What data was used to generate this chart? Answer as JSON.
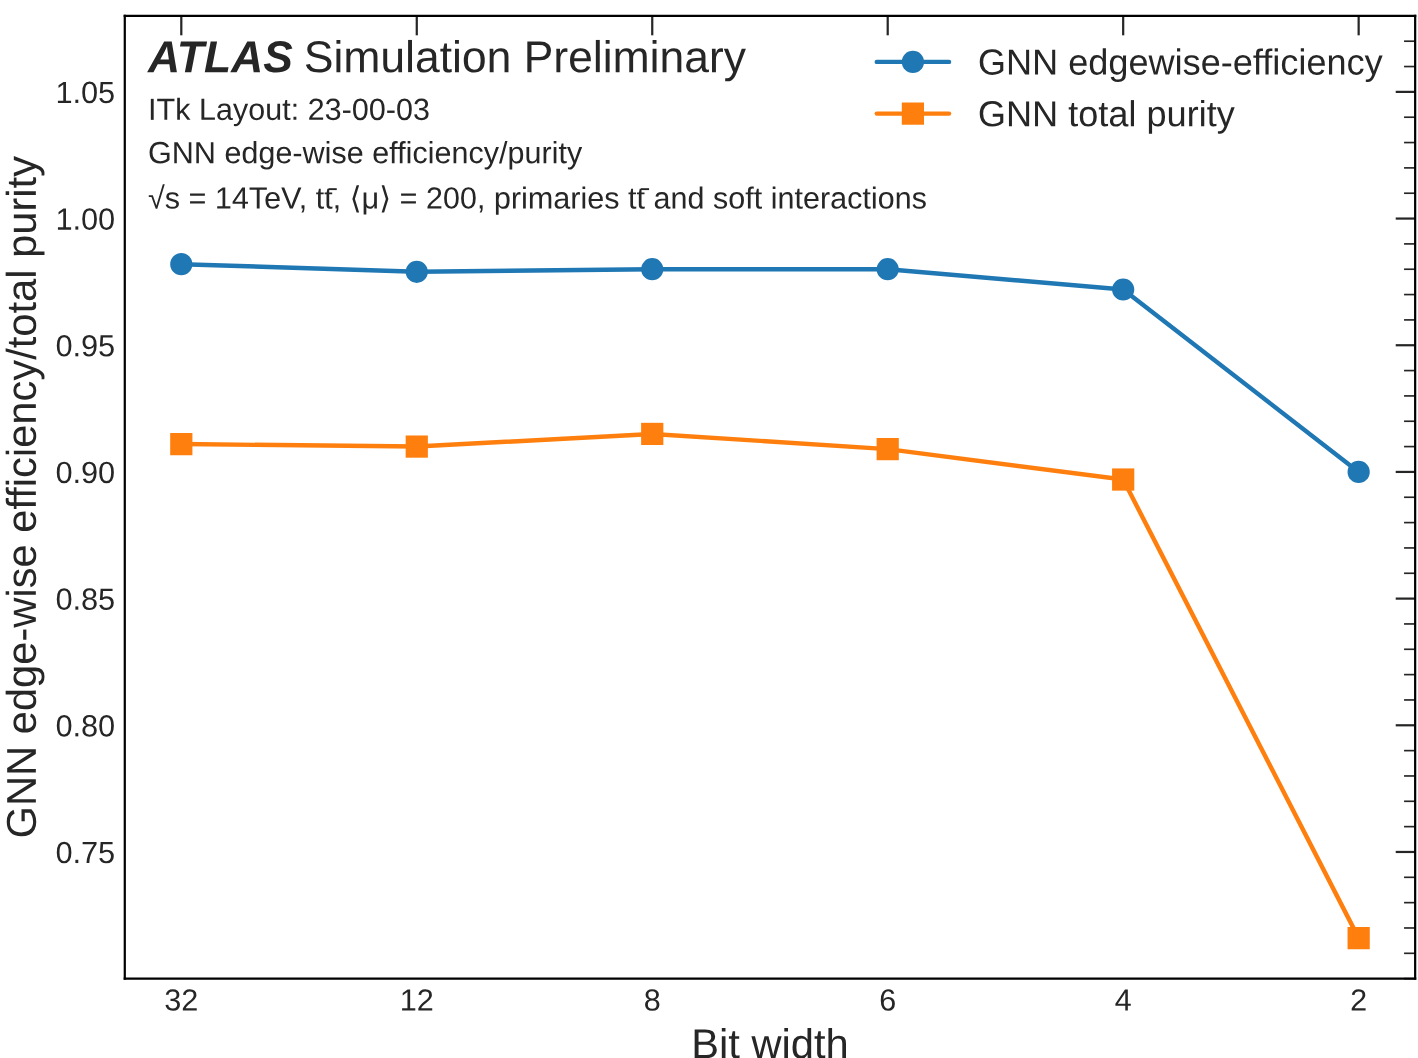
{
  "chart_data": {
    "type": "line",
    "xlabel": "Bit width",
    "ylabel": "GNN edge-wise efficiency/total purity",
    "categories": [
      "32",
      "12",
      "8",
      "6",
      "4",
      "2"
    ],
    "series": [
      {
        "name": "GNN edgewise-efficiency",
        "color": "#1f77b4",
        "marker": "circle",
        "values": [
          0.982,
          0.979,
          0.98,
          0.98,
          0.972,
          0.9
        ]
      },
      {
        "name": "GNN total purity",
        "color": "#ff7f0e",
        "marker": "square",
        "values": [
          0.911,
          0.91,
          0.915,
          0.909,
          0.897,
          0.716
        ]
      }
    ],
    "ylim": [
      0.7,
      1.08
    ],
    "yticks": [
      {
        "value": 0.75,
        "label": "0.75"
      },
      {
        "value": 0.8,
        "label": "0.80"
      },
      {
        "value": 0.85,
        "label": "0.85"
      },
      {
        "value": 0.9,
        "label": "0.90"
      },
      {
        "value": 0.95,
        "label": "0.95"
      },
      {
        "value": 1.0,
        "label": "1.00"
      },
      {
        "value": 1.05,
        "label": "1.05"
      }
    ],
    "annotations": [
      "ATLAS",
      "Simulation Preliminary",
      "ITk Layout: 23-00-03",
      "GNN edge-wise efficiency/purity",
      "√s = 14TeV, tt̄, ⟨μ⟩ = 200, primaries tt̄ and soft interactions"
    ],
    "legend": "top right",
    "grid": false,
    "line_style": "solid"
  }
}
